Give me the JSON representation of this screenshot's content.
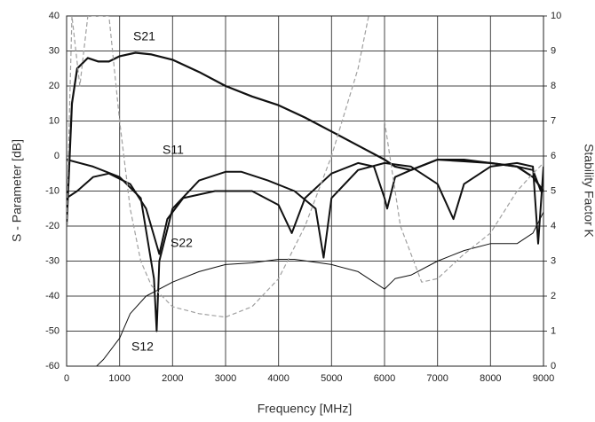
{
  "chart_data": {
    "type": "line",
    "xlabel": "Frequency [MHz]",
    "ylabel": "S - Parameter  [dB]",
    "y2label": "Stability Factor K",
    "xlim": [
      0,
      9000
    ],
    "xticks": [
      0,
      1000,
      2000,
      3000,
      4000,
      5000,
      6000,
      7000,
      8000,
      9000
    ],
    "ylim": [
      -60,
      40
    ],
    "yticks": [
      -60,
      -50,
      -40,
      -30,
      -20,
      -10,
      0,
      10,
      20,
      30,
      40
    ],
    "y2lim": [
      0,
      10
    ],
    "y2ticks": [
      0,
      1,
      2,
      3,
      4,
      5,
      6,
      7,
      8,
      9,
      10
    ],
    "grid": true,
    "series": [
      {
        "name": "S21",
        "color": "#111111",
        "x": [
          0,
          100,
          200,
          400,
          600,
          800,
          1000,
          1300,
          1600,
          2000,
          2500,
          3000,
          3500,
          4000,
          4500,
          5000,
          5500,
          6000,
          6200,
          6500,
          7000,
          7500,
          8000,
          8500,
          8800,
          9000
        ],
        "values": [
          -20,
          15,
          25,
          28,
          27,
          27,
          28.5,
          29.5,
          29,
          27.5,
          24,
          20,
          17,
          14.5,
          11,
          7,
          3,
          -1,
          -3,
          -4,
          -1,
          -1.5,
          -2,
          -3,
          -6,
          -10
        ]
      },
      {
        "name": "S11",
        "color": "#111111",
        "x": [
          0,
          200,
          500,
          800,
          1200,
          1500,
          1750,
          1900,
          2200,
          2800,
          3500,
          4000,
          4250,
          4500,
          5000,
          5500,
          5800,
          6000,
          6050,
          6200,
          6500,
          7000,
          7500,
          8000,
          8500,
          8800,
          8950,
          9000
        ],
        "values": [
          -12,
          -10,
          -6,
          -5,
          -8,
          -15,
          -28,
          -18,
          -12,
          -10,
          -10,
          -14,
          -22,
          -12,
          -5,
          -2,
          -3,
          -12,
          -15,
          -6,
          -4,
          -1,
          -1,
          -2,
          -3,
          -4,
          -10,
          -10
        ]
      },
      {
        "name": "S22",
        "color": "#111111",
        "x": [
          0,
          500,
          1000,
          1400,
          1650,
          1700,
          1750,
          2000,
          2500,
          3000,
          3300,
          3800,
          4300,
          4700,
          4850,
          5000,
          5500,
          6000,
          6500,
          7000,
          7300,
          7500,
          8000,
          8500,
          8800,
          8900,
          9000
        ],
        "values": [
          -1,
          -3,
          -6,
          -12,
          -35,
          -50,
          -30,
          -15,
          -7,
          -4.5,
          -4.5,
          -7,
          -10,
          -15,
          -29,
          -12,
          -4,
          -2,
          -3,
          -8,
          -18,
          -8,
          -3,
          -2,
          -3,
          -25,
          -3
        ]
      },
      {
        "name": "S12",
        "color": "#111111",
        "x": [
          500,
          700,
          1000,
          1200,
          1500,
          2000,
          2500,
          3000,
          3500,
          4000,
          4300,
          5000,
          5500,
          6000,
          6200,
          6500,
          7000,
          7500,
          8000,
          8500,
          8800,
          9000
        ],
        "values": [
          -61,
          -58,
          -52,
          -45,
          -40,
          -36,
          -33,
          -31,
          -30.5,
          -29.5,
          -29.5,
          -31,
          -33,
          -38,
          -35,
          -34,
          -30,
          -27,
          -25,
          -25,
          -22,
          -16
        ]
      },
      {
        "color": "#a0a0a0",
        "axis": "y2",
        "dashed": true,
        "x": [
          0,
          100,
          250,
          400,
          600,
          800,
          1000,
          1200,
          1400,
          1600,
          2000,
          2500,
          3000,
          3500,
          4000,
          4500,
          5000,
          5500,
          5700,
          5800,
          6000,
          6300,
          6700,
          7000,
          7500,
          8000,
          8500,
          8800,
          9000
        ],
        "values": [
          4,
          10,
          8,
          10,
          10,
          10,
          7,
          4.5,
          3,
          2.3,
          1.7,
          1.5,
          1.4,
          1.7,
          2.5,
          4,
          6,
          8.5,
          10,
          null,
          7,
          4,
          2.4,
          2.5,
          3.2,
          3.8,
          5,
          5.5,
          5.8
        ]
      }
    ]
  }
}
